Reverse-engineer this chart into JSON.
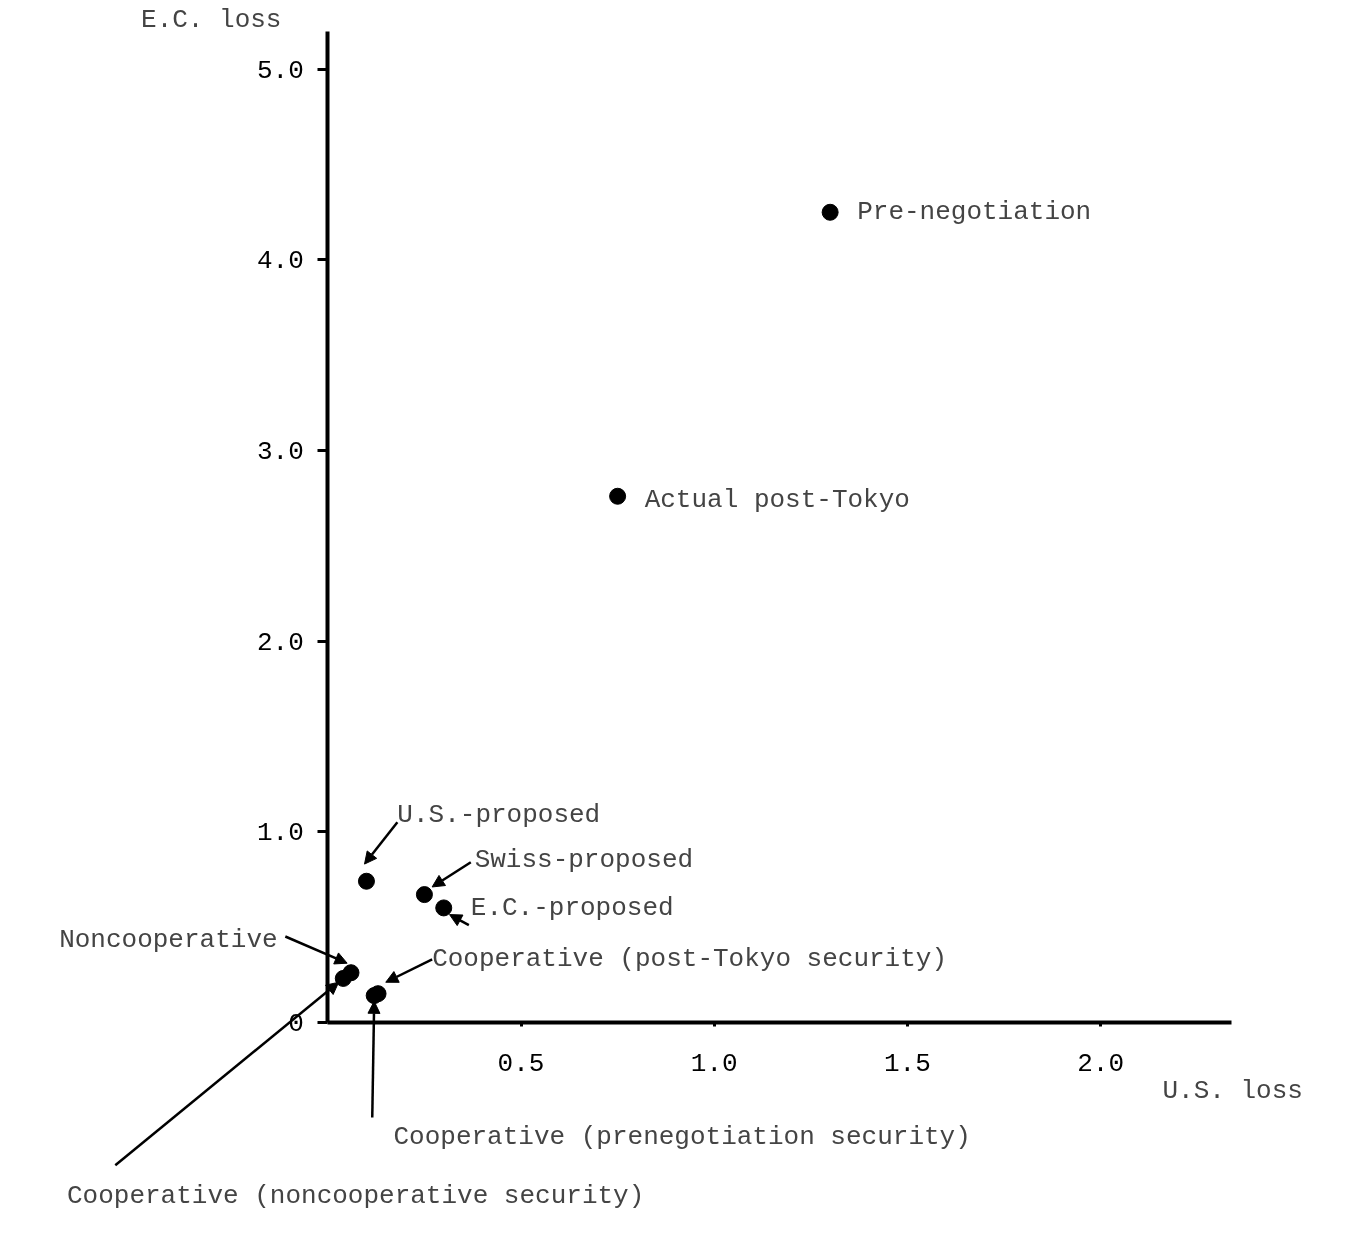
{
  "chart_data": {
    "type": "scatter",
    "xlabel": "U.S. loss",
    "ylabel": "E.C. loss",
    "x": [
      1.3,
      0.75,
      0.1,
      0.25,
      0.3,
      0.06,
      0.13,
      0.12,
      0.04
    ],
    "series": [
      {
        "color": "#000000",
        "values": [
          4.25,
          2.76,
          0.74,
          0.67,
          0.6,
          0.26,
          0.15,
          0.14,
          0.23
        ]
      }
    ],
    "marker": "circle",
    "xlim": [
      0,
      2.34
    ],
    "ylim": [
      0,
      5.2
    ],
    "xticks": [
      {
        "value": 0.5,
        "label": "0.5"
      },
      {
        "value": 1.0,
        "label": "1.0"
      },
      {
        "value": 1.5,
        "label": "1.5"
      },
      {
        "value": 2.0,
        "label": "2.0"
      }
    ],
    "yticks": [
      0,
      {
        "value": 1.0,
        "label": "1.0"
      },
      {
        "value": 2.0,
        "label": "2.0"
      },
      {
        "value": 3.0,
        "label": "3.0"
      },
      {
        "value": 4.0,
        "label": "4.0"
      },
      {
        "value": 5.0,
        "label": "5.0"
      }
    ],
    "grid": false,
    "annotations": [
      {
        "text": "Pre-negotiation",
        "x": 1.3,
        "y": 4.25
      },
      {
        "text": "Actual post-Tokyo",
        "x": 0.75,
        "y": 2.76
      },
      {
        "text": "U.S.-proposed",
        "x": 0.1,
        "y": 0.74
      },
      {
        "text": "Swiss-proposed",
        "x": 0.25,
        "y": 0.67
      },
      {
        "text": "E.C.-proposed",
        "x": 0.3,
        "y": 0.6
      },
      {
        "text": "Noncooperative",
        "x": 0.06,
        "y": 0.26
      },
      {
        "text": "Cooperative (post-Tokyo security)",
        "x": 0.13,
        "y": 0.15
      },
      {
        "text": "Cooperative (prenegotiation security)",
        "x": 0.12,
        "y": 0.14
      },
      {
        "text": "Cooperative (noncooperative security)",
        "x": 0.04,
        "y": 0.23
      }
    ]
  }
}
